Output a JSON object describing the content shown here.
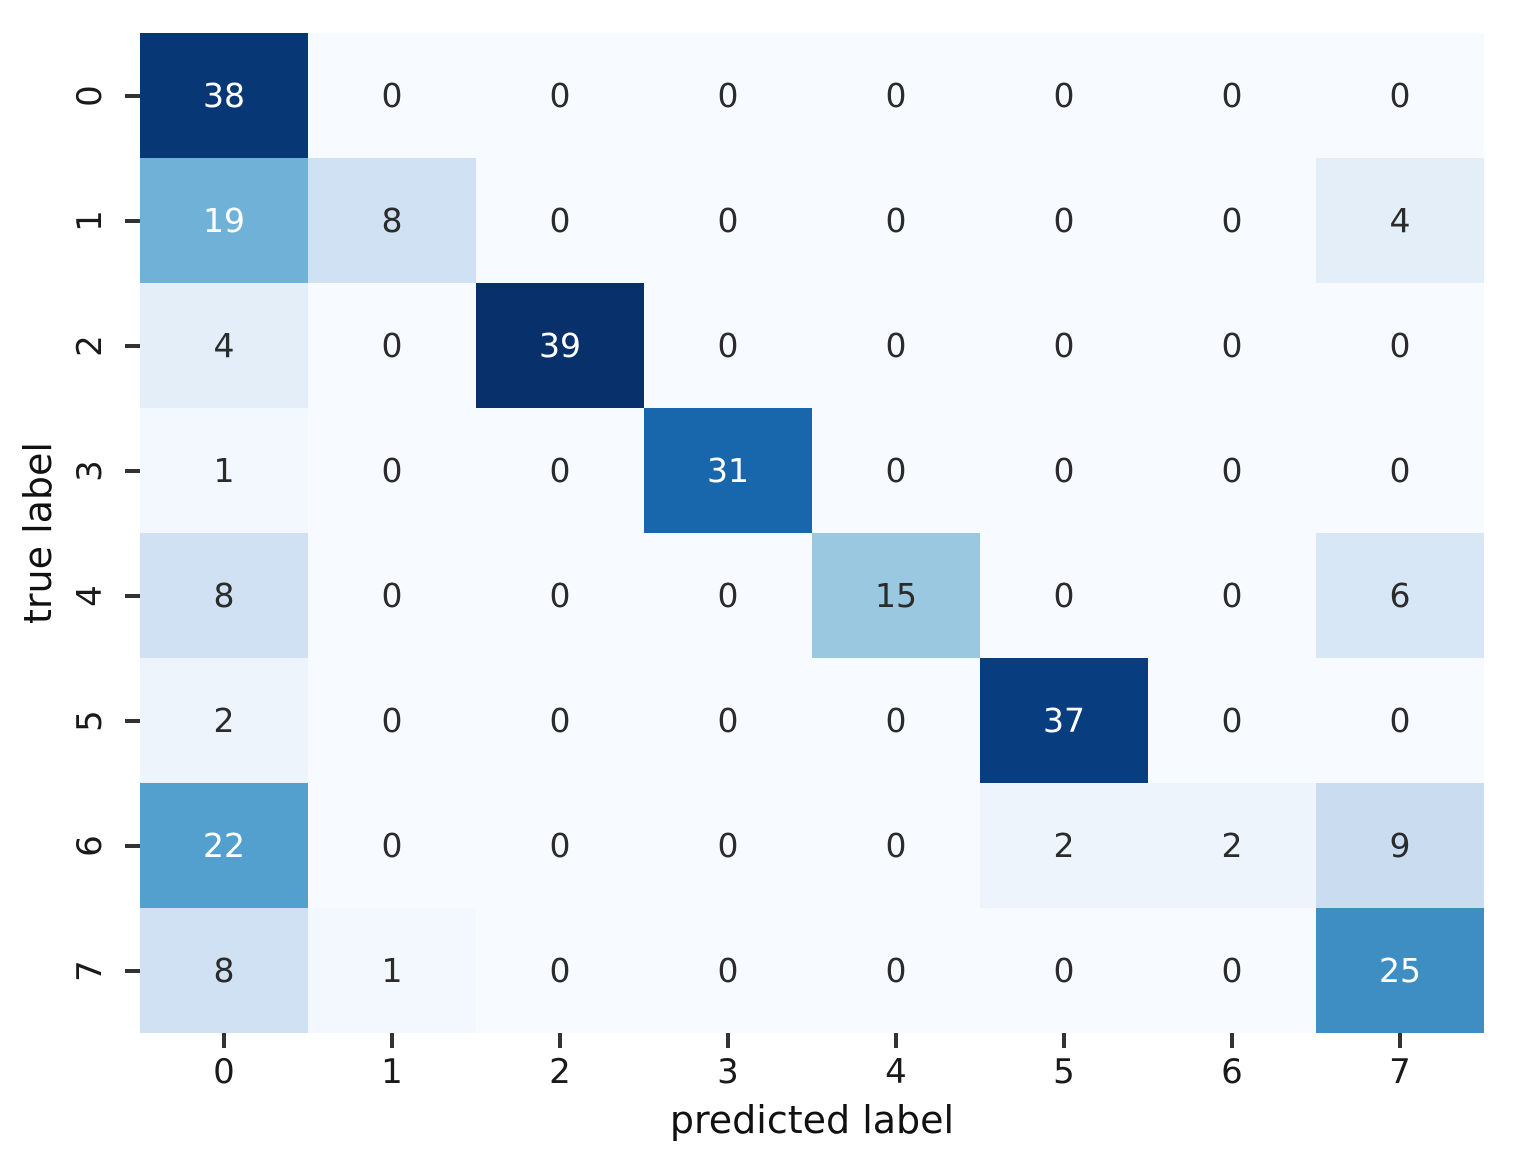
{
  "chart_data": {
    "type": "heatmap",
    "title": "",
    "xlabel": "predicted label",
    "ylabel": "true label",
    "x_tick_labels": [
      "0",
      "1",
      "2",
      "3",
      "4",
      "5",
      "6",
      "7"
    ],
    "y_tick_labels": [
      "0",
      "1",
      "2",
      "3",
      "4",
      "5",
      "6",
      "7"
    ],
    "colormap": "Blues",
    "vmin": 0,
    "vmax": 39,
    "legend": "none",
    "grid": false,
    "values": [
      [
        38,
        0,
        0,
        0,
        0,
        0,
        0,
        0
      ],
      [
        19,
        8,
        0,
        0,
        0,
        0,
        0,
        4
      ],
      [
        4,
        0,
        39,
        0,
        0,
        0,
        0,
        0
      ],
      [
        1,
        0,
        0,
        31,
        0,
        0,
        0,
        0
      ],
      [
        8,
        0,
        0,
        0,
        15,
        0,
        0,
        6
      ],
      [
        2,
        0,
        0,
        0,
        0,
        37,
        0,
        0
      ],
      [
        22,
        0,
        0,
        0,
        0,
        2,
        2,
        9
      ],
      [
        8,
        1,
        0,
        0,
        0,
        0,
        0,
        25
      ]
    ],
    "cell_colors": [
      [
        "#083775",
        "#f7fbff",
        "#f7fbff",
        "#f7fbff",
        "#f7fbff",
        "#f7fbff",
        "#f7fbff",
        "#f7fbff"
      ],
      [
        "#70b1d7",
        "#cfe1f2",
        "#f7fbff",
        "#f7fbff",
        "#f7fbff",
        "#f7fbff",
        "#f7fbff",
        "#e3eef8"
      ],
      [
        "#e3eef8",
        "#f7fbff",
        "#08306b",
        "#f7fbff",
        "#f7fbff",
        "#f7fbff",
        "#f7fbff",
        "#f7fbff"
      ],
      [
        "#f2f8fd",
        "#f7fbff",
        "#f7fbff",
        "#1866ac",
        "#f7fbff",
        "#f7fbff",
        "#f7fbff",
        "#f7fbff"
      ],
      [
        "#cfe1f2",
        "#f7fbff",
        "#f7fbff",
        "#f7fbff",
        "#9ac8e0",
        "#f7fbff",
        "#f7fbff",
        "#d8e7f5"
      ],
      [
        "#edf4fc",
        "#f7fbff",
        "#f7fbff",
        "#f7fbff",
        "#f7fbff",
        "#083e7f",
        "#f7fbff",
        "#f7fbff"
      ],
      [
        "#539fcd",
        "#f7fbff",
        "#f7fbff",
        "#f7fbff",
        "#f7fbff",
        "#edf4fc",
        "#edf4fc",
        "#caddf0"
      ],
      [
        "#cfe1f2",
        "#f2f8fd",
        "#f7fbff",
        "#f7fbff",
        "#f7fbff",
        "#f7fbff",
        "#f7fbff",
        "#3e8ec4"
      ]
    ],
    "white_text_min": 19,
    "cell_text_dark": "#2b2b2b",
    "cell_text_light": "#ffffff"
  }
}
